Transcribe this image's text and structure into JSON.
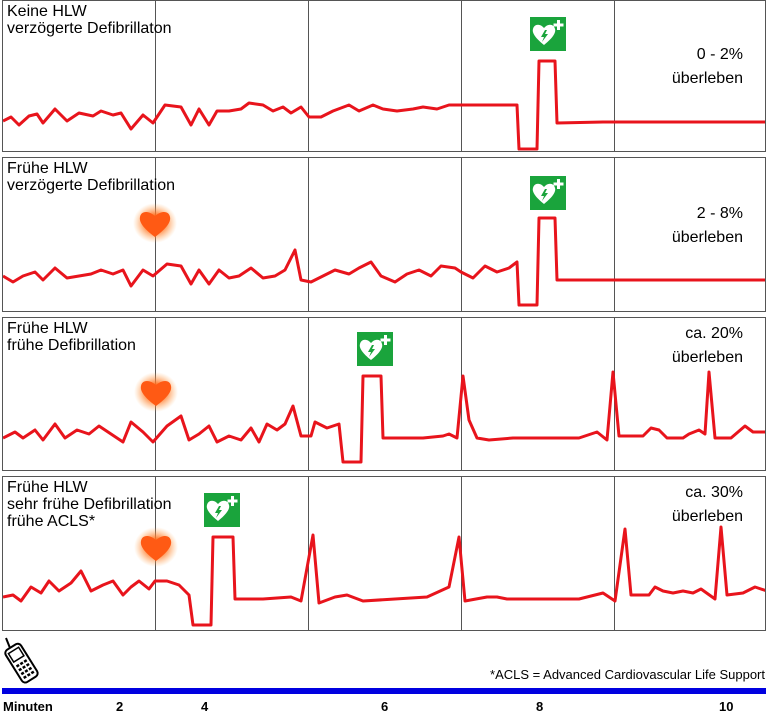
{
  "panels": [
    {
      "title": "Keine HLW\nverzögerte Defibrillaton",
      "survival": "0 - 2%\nüberleben"
    },
    {
      "title": "Frühe HLW\nverzögerte Defibrillation",
      "survival": "2 - 8%\nüberleben"
    },
    {
      "title": "Frühe HLW\nfrühe Defibrillation",
      "survival": "ca. 20%\nüberleben"
    },
    {
      "title": "Frühe HLW\nsehr frühe Defibrillation\nfrühe ACLS*",
      "survival": "ca. 30%\nüberleben"
    }
  ],
  "footnote": "*ACLS = Advanced Cardiovascular Life Support",
  "time_axis": {
    "label": "Minuten",
    "ticks": [
      "2",
      "4",
      "6",
      "8",
      "10"
    ]
  },
  "colors": {
    "trace": "#e8141c",
    "aed_green": "#1aa43c",
    "time_bar": "#0000e0",
    "heart": "#ff6a1a"
  },
  "icons": {
    "aed": "aed-defibrillator-icon",
    "cpr": "heart-icon",
    "phone": "mobile-phone-icon"
  }
}
